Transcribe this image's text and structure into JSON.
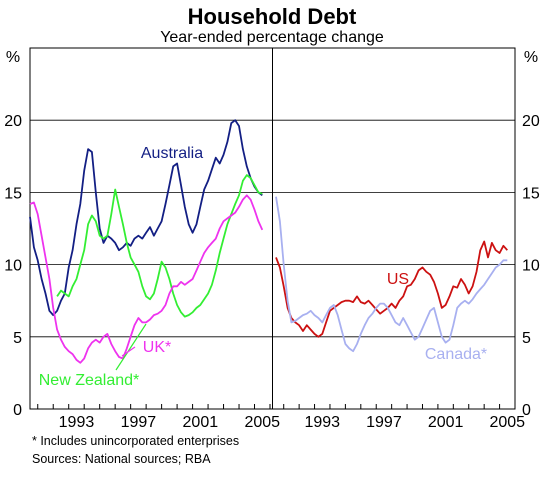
{
  "chart_data": {
    "type": "line",
    "title": "Household Debt",
    "subtitle": "Year-ended percentage change",
    "ylabel_left": "%",
    "ylabel_right": "%",
    "ylim": [
      0,
      25
    ],
    "yticks": [
      0,
      5,
      10,
      15,
      20
    ],
    "ytick_labels": [
      "0",
      "5",
      "10",
      "15",
      "20"
    ],
    "xlim": [
      1990,
      2005.5
    ],
    "xticks": [
      1993,
      1997,
      2001,
      2005
    ],
    "xtick_labels": [
      "1993",
      "1997",
      "2001",
      "2005"
    ],
    "grid": true,
    "panels": [
      {
        "series": [
          {
            "name": "Australia",
            "color": "#131f84",
            "x": [
              1990.0,
              1990.25,
              1990.5,
              1990.75,
              1991.0,
              1991.25,
              1991.5,
              1991.75,
              1992.0,
              1992.25,
              1992.5,
              1992.75,
              1993.0,
              1993.25,
              1993.5,
              1993.75,
              1994.0,
              1994.25,
              1994.5,
              1994.75,
              1995.0,
              1995.25,
              1995.5,
              1995.75,
              1996.0,
              1996.25,
              1996.5,
              1996.75,
              1997.0,
              1997.25,
              1997.5,
              1997.75,
              1998.0,
              1998.25,
              1998.5,
              1998.75,
              1999.0,
              1999.25,
              1999.5,
              1999.75,
              2000.0,
              2000.25,
              2000.5,
              2000.75,
              2001.0,
              2001.25,
              2001.5,
              2001.75,
              2002.0,
              2002.25,
              2002.5,
              2002.75,
              2003.0,
              2003.25,
              2003.5,
              2003.75,
              2004.0,
              2004.25,
              2004.5,
              2004.75,
              2005.0
            ],
            "values": [
              13.3,
              11.2,
              10.3,
              9.0,
              8.0,
              6.8,
              6.5,
              6.8,
              7.5,
              8.0,
              9.8,
              11.0,
              12.8,
              14.2,
              16.5,
              18.0,
              17.8,
              15.0,
              12.5,
              11.5,
              12.0,
              11.8,
              11.5,
              11.0,
              11.2,
              11.5,
              11.3,
              11.8,
              12.0,
              11.8,
              12.2,
              12.6,
              12.0,
              12.5,
              13.0,
              14.2,
              15.5,
              16.8,
              17.0,
              15.5,
              14.0,
              12.8,
              12.2,
              12.8,
              14.0,
              15.2,
              15.8,
              16.6,
              17.4,
              17.0,
              17.6,
              18.5,
              19.8,
              20.0,
              19.6,
              18.0,
              16.8,
              16.0,
              15.4,
              15.0,
              14.8
            ]
          },
          {
            "name": "New Zealand",
            "color": "#33ee33",
            "x": [
              1991.75,
              1992.0,
              1992.25,
              1992.5,
              1992.75,
              1993.0,
              1993.25,
              1993.5,
              1993.75,
              1994.0,
              1994.25,
              1994.5,
              1994.75,
              1995.0,
              1995.25,
              1995.5,
              1995.75,
              1996.0,
              1996.25,
              1996.5,
              1996.75,
              1997.0,
              1997.25,
              1997.5,
              1997.75,
              1998.0,
              1998.25,
              1998.5,
              1998.75,
              1999.0,
              1999.25,
              1999.5,
              1999.75,
              2000.0,
              2000.25,
              2000.5,
              2000.75,
              2001.0,
              2001.25,
              2001.5,
              2001.75,
              2002.0,
              2002.25,
              2002.5,
              2002.75,
              2003.0,
              2003.25,
              2003.5,
              2003.75,
              2004.0,
              2004.25,
              2004.5,
              2004.75,
              2005.0
            ],
            "values": [
              7.8,
              8.2,
              8.0,
              7.8,
              8.5,
              9.0,
              10.0,
              11.0,
              12.8,
              13.4,
              13.0,
              12.0,
              11.8,
              12.0,
              13.5,
              15.2,
              14.0,
              12.8,
              11.5,
              10.5,
              10.0,
              9.5,
              8.5,
              7.8,
              7.6,
              8.0,
              9.0,
              10.2,
              9.8,
              9.0,
              8.0,
              7.2,
              6.7,
              6.4,
              6.5,
              6.7,
              7.0,
              7.2,
              7.6,
              8.0,
              8.6,
              9.6,
              10.8,
              11.8,
              12.8,
              13.5,
              14.2,
              14.8,
              15.8,
              16.2,
              16.0,
              15.5,
              15.0,
              14.9
            ]
          },
          {
            "name": "UK*",
            "color": "#ee33ee",
            "x": [
              1990.0,
              1990.25,
              1990.5,
              1990.75,
              1991.0,
              1991.25,
              1991.5,
              1991.75,
              1992.0,
              1992.25,
              1992.5,
              1992.75,
              1993.0,
              1993.25,
              1993.5,
              1993.75,
              1994.0,
              1994.25,
              1994.5,
              1994.75,
              1995.0,
              1995.25,
              1995.5,
              1995.75,
              1996.0,
              1996.25,
              1996.5,
              1996.75,
              1997.0,
              1997.25,
              1997.5,
              1997.75,
              1998.0,
              1998.25,
              1998.5,
              1998.75,
              1999.0,
              1999.25,
              1999.5,
              1999.75,
              2000.0,
              2000.25,
              2000.5,
              2000.75,
              2001.0,
              2001.25,
              2001.5,
              2001.75,
              2002.0,
              2002.25,
              2002.5,
              2002.75,
              2003.0,
              2003.25,
              2003.5,
              2003.75,
              2004.0,
              2004.25,
              2004.5,
              2004.75,
              2005.0
            ],
            "values": [
              14.2,
              14.3,
              13.5,
              12.0,
              10.5,
              9.0,
              7.0,
              5.5,
              4.8,
              4.3,
              4.0,
              3.8,
              3.4,
              3.2,
              3.5,
              4.2,
              4.6,
              4.8,
              4.6,
              5.0,
              5.2,
              4.5,
              4.0,
              3.6,
              3.5,
              4.2,
              5.0,
              5.8,
              6.3,
              6.0,
              6.0,
              6.2,
              6.5,
              6.6,
              6.8,
              7.2,
              8.0,
              8.5,
              8.5,
              8.8,
              8.6,
              8.8,
              9.0,
              9.6,
              10.2,
              10.8,
              11.2,
              11.5,
              11.8,
              12.5,
              13.0,
              13.2,
              13.4,
              13.6,
              14.0,
              14.5,
              14.8,
              14.5,
              13.8,
              13.0,
              12.4
            ]
          }
        ],
        "labels": [
          "Australia",
          "New Zealand*",
          "UK*"
        ]
      },
      {
        "series": [
          {
            "name": "US",
            "color": "#cc1111",
            "x": [
              1990.0,
              1990.25,
              1990.5,
              1990.75,
              1991.0,
              1991.25,
              1991.5,
              1991.75,
              1992.0,
              1992.25,
              1992.5,
              1992.75,
              1993.0,
              1993.25,
              1993.5,
              1993.75,
              1994.0,
              1994.25,
              1994.5,
              1994.75,
              1995.0,
              1995.25,
              1995.5,
              1995.75,
              1996.0,
              1996.25,
              1996.5,
              1996.75,
              1997.0,
              1997.25,
              1997.5,
              1997.75,
              1998.0,
              1998.25,
              1998.5,
              1998.75,
              1999.0,
              1999.25,
              1999.5,
              1999.75,
              2000.0,
              2000.25,
              2000.5,
              2000.75,
              2001.0,
              2001.25,
              2001.5,
              2001.75,
              2002.0,
              2002.25,
              2002.5,
              2002.75,
              2003.0,
              2003.25,
              2003.5,
              2003.75,
              2004.0,
              2004.25,
              2004.5,
              2004.75,
              2005.0
            ],
            "values": [
              10.5,
              9.8,
              8.5,
              7.0,
              6.3,
              6.0,
              5.8,
              5.4,
              5.8,
              5.5,
              5.2,
              5.0,
              5.2,
              6.0,
              6.8,
              7.0,
              7.2,
              7.4,
              7.5,
              7.5,
              7.4,
              7.8,
              7.4,
              7.3,
              7.5,
              7.2,
              6.9,
              6.6,
              6.8,
              7.0,
              7.3,
              7.0,
              7.5,
              7.8,
              8.5,
              8.6,
              9.0,
              9.6,
              9.8,
              9.5,
              9.3,
              8.8,
              8.0,
              7.0,
              7.2,
              7.8,
              8.5,
              8.4,
              9.0,
              8.6,
              8.0,
              8.5,
              9.5,
              11.0,
              11.6,
              10.5,
              11.5,
              11.0,
              10.8,
              11.3,
              11.0
            ]
          },
          {
            "name": "Canada*",
            "color": "#a8b0f0",
            "x": [
              1990.0,
              1990.25,
              1990.5,
              1990.75,
              1991.0,
              1991.25,
              1991.5,
              1991.75,
              1992.0,
              1992.25,
              1992.5,
              1992.75,
              1993.0,
              1993.25,
              1993.5,
              1993.75,
              1994.0,
              1994.25,
              1994.5,
              1994.75,
              1995.0,
              1995.25,
              1995.5,
              1995.75,
              1996.0,
              1996.25,
              1996.5,
              1996.75,
              1997.0,
              1997.25,
              1997.5,
              1997.75,
              1998.0,
              1998.25,
              1998.5,
              1998.75,
              1999.0,
              1999.25,
              1999.5,
              1999.75,
              2000.0,
              2000.25,
              2000.5,
              2000.75,
              2001.0,
              2001.25,
              2001.5,
              2001.75,
              2002.0,
              2002.25,
              2002.5,
              2002.75,
              2003.0,
              2003.25,
              2003.5,
              2003.75,
              2004.0,
              2004.25,
              2004.5,
              2004.75,
              2005.0
            ],
            "values": [
              14.7,
              13.0,
              10.0,
              7.5,
              6.0,
              6.1,
              6.3,
              6.5,
              6.6,
              6.8,
              6.5,
              6.3,
              6.0,
              6.5,
              7.0,
              7.2,
              6.5,
              5.5,
              4.5,
              4.2,
              4.0,
              4.5,
              5.2,
              5.8,
              6.3,
              6.6,
              7.0,
              7.3,
              7.3,
              7.0,
              6.5,
              6.0,
              5.8,
              6.3,
              5.8,
              5.3,
              4.8,
              5.0,
              5.6,
              6.2,
              6.8,
              7.0,
              6.0,
              5.0,
              4.6,
              4.8,
              5.8,
              7.0,
              7.3,
              7.5,
              7.3,
              7.6,
              8.0,
              8.3,
              8.6,
              9.0,
              9.4,
              9.8,
              10.0,
              10.3,
              10.3
            ]
          }
        ],
        "labels": [
          "US",
          "Canada*"
        ]
      }
    ],
    "footnotes": [
      "*   Includes unincorporated enterprises",
      "Sources: National sources; RBA"
    ]
  }
}
